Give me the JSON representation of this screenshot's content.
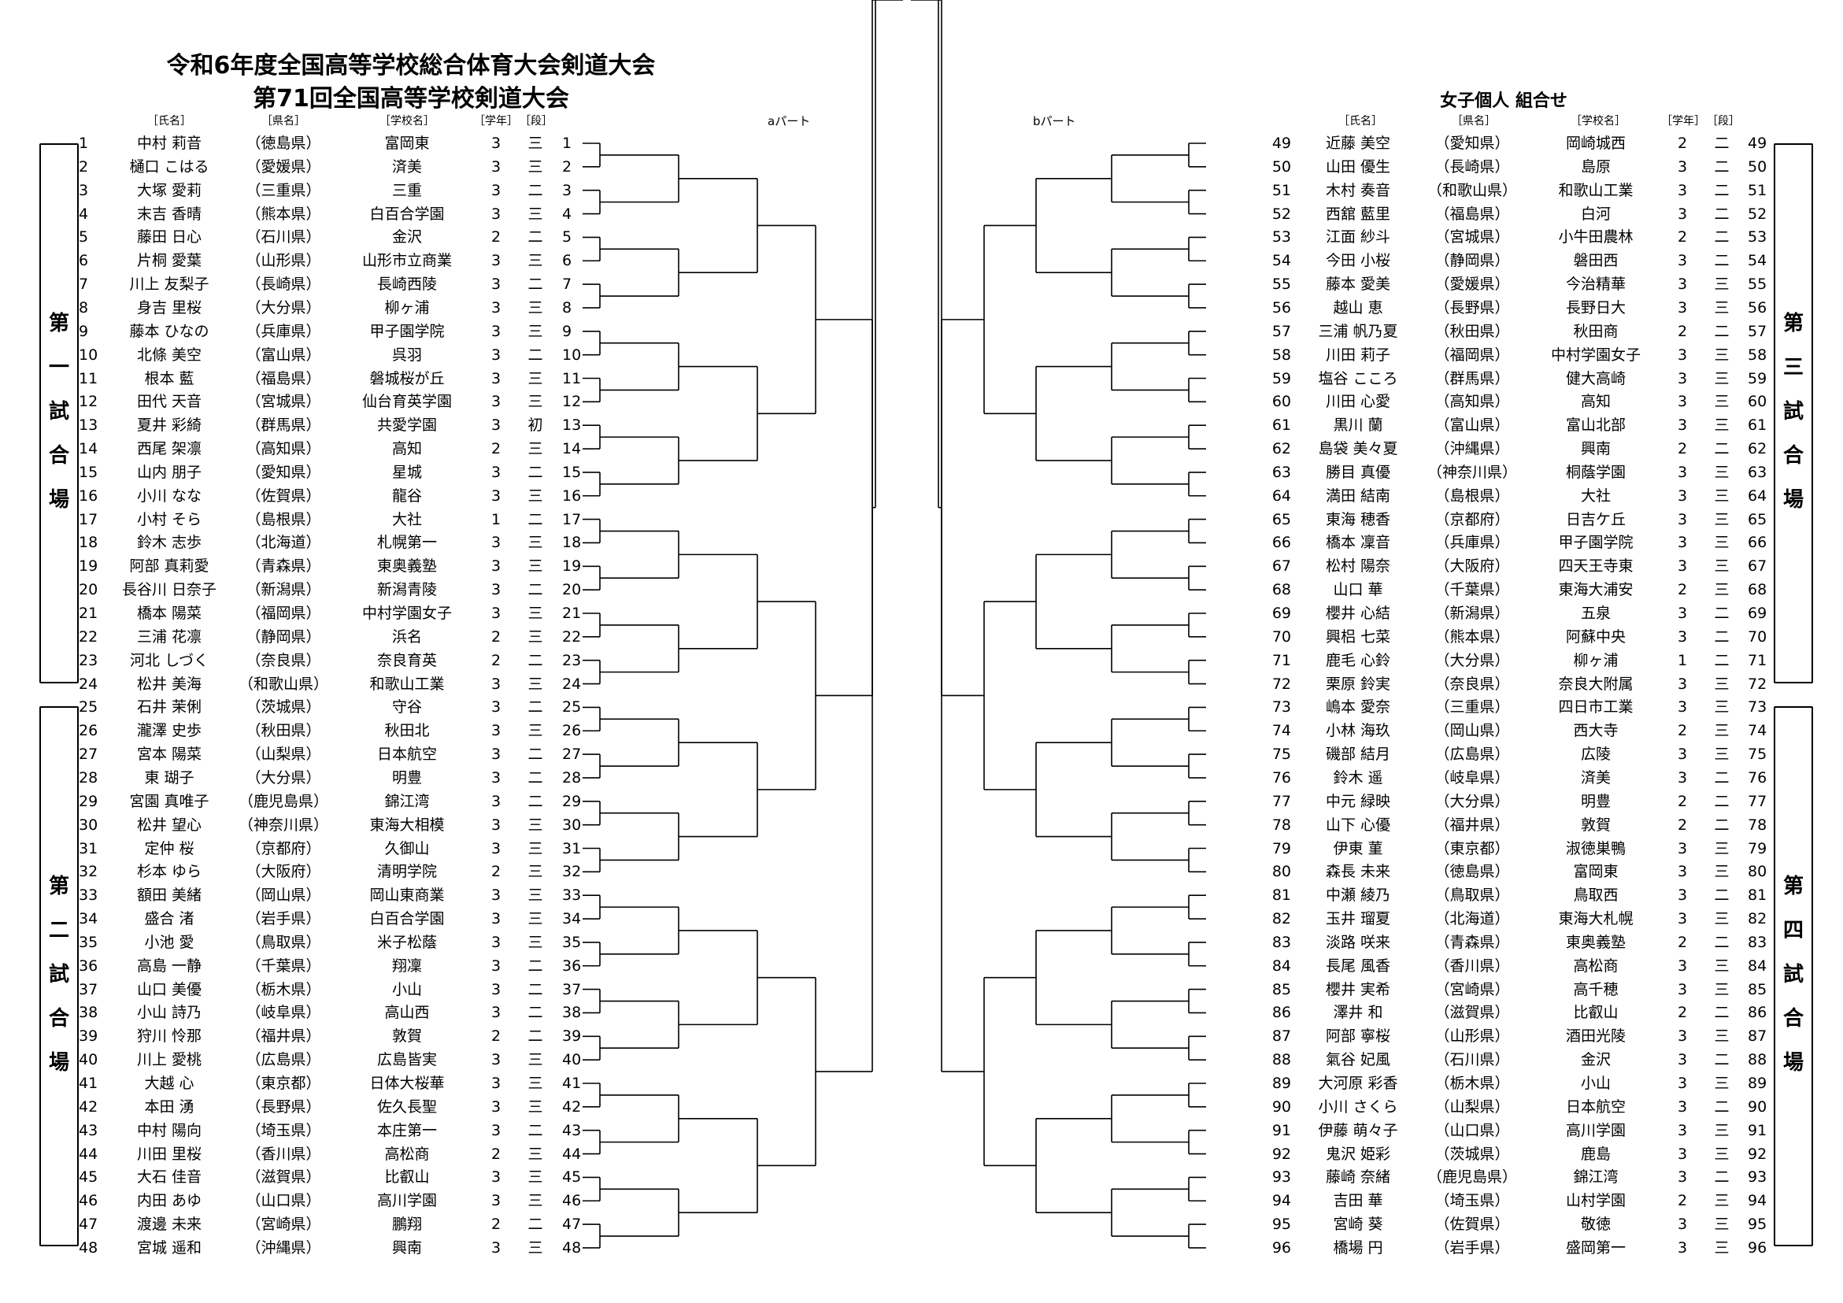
{
  "title_line1": "令和6年度全国高等学校総合体育大会剣道大会",
  "title_line2": "第71回全国高等学校剣道大会",
  "subtitle": "女子個人 組合せ",
  "headers": {
    "name": "［氏名］",
    "pref": "［県名］",
    "school": "［学校名］",
    "grade": "［学年］",
    "dan": "［段］"
  },
  "part_a": "aパート",
  "part_b": "bパート",
  "venues": [
    {
      "label": "第一試合場",
      "chars": [
        "第",
        "一",
        "試",
        "合",
        "場"
      ]
    },
    {
      "label": "第二試合場",
      "chars": [
        "第",
        "二",
        "試",
        "合",
        "場"
      ]
    },
    {
      "label": "第三試合場",
      "chars": [
        "第",
        "三",
        "試",
        "合",
        "場"
      ]
    },
    {
      "label": "第四試合場",
      "chars": [
        "第",
        "四",
        "試",
        "合",
        "場"
      ]
    }
  ],
  "players": [
    {
      "no": "1",
      "name": "中村 莉音",
      "pref": "（徳島県）",
      "school": "富岡東",
      "grade": "3",
      "dan": "三"
    },
    {
      "no": "2",
      "name": "樋口 こはる",
      "pref": "（愛媛県）",
      "school": "済美",
      "grade": "3",
      "dan": "三"
    },
    {
      "no": "3",
      "name": "大塚 愛莉",
      "pref": "（三重県）",
      "school": "三重",
      "grade": "3",
      "dan": "二"
    },
    {
      "no": "4",
      "name": "末吉 香晴",
      "pref": "（熊本県）",
      "school": "白百合学園",
      "grade": "3",
      "dan": "三"
    },
    {
      "no": "5",
      "name": "藤田 日心",
      "pref": "（石川県）",
      "school": "金沢",
      "grade": "2",
      "dan": "二"
    },
    {
      "no": "6",
      "name": "片桐 愛葉",
      "pref": "（山形県）",
      "school": "山形市立商業",
      "grade": "3",
      "dan": "三"
    },
    {
      "no": "7",
      "name": "川上 友梨子",
      "pref": "（長崎県）",
      "school": "長崎西陵",
      "grade": "3",
      "dan": "二"
    },
    {
      "no": "8",
      "name": "身吉 里桜",
      "pref": "（大分県）",
      "school": "柳ヶ浦",
      "grade": "3",
      "dan": "三"
    },
    {
      "no": "9",
      "name": "藤本 ひなの",
      "pref": "（兵庫県）",
      "school": "甲子園学院",
      "grade": "3",
      "dan": "三"
    },
    {
      "no": "10",
      "name": "北條 美空",
      "pref": "（富山県）",
      "school": "呉羽",
      "grade": "3",
      "dan": "二"
    },
    {
      "no": "11",
      "name": "根本 藍",
      "pref": "（福島県）",
      "school": "磐城桜が丘",
      "grade": "3",
      "dan": "三"
    },
    {
      "no": "12",
      "name": "田代 天音",
      "pref": "（宮城県）",
      "school": "仙台育英学園",
      "grade": "3",
      "dan": "三"
    },
    {
      "no": "13",
      "name": "夏井 彩綺",
      "pref": "（群馬県）",
      "school": "共愛学園",
      "grade": "3",
      "dan": "初"
    },
    {
      "no": "14",
      "name": "西尾 架凛",
      "pref": "（高知県）",
      "school": "高知",
      "grade": "2",
      "dan": "三"
    },
    {
      "no": "15",
      "name": "山内 朋子",
      "pref": "（愛知県）",
      "school": "星城",
      "grade": "3",
      "dan": "二"
    },
    {
      "no": "16",
      "name": "小川 なな",
      "pref": "（佐賀県）",
      "school": "龍谷",
      "grade": "3",
      "dan": "三"
    },
    {
      "no": "17",
      "name": "小村 そら",
      "pref": "（島根県）",
      "school": "大社",
      "grade": "1",
      "dan": "二"
    },
    {
      "no": "18",
      "name": "鈴木 志歩",
      "pref": "（北海道）",
      "school": "札幌第一",
      "grade": "3",
      "dan": "三"
    },
    {
      "no": "19",
      "name": "阿部 真莉愛",
      "pref": "（青森県）",
      "school": "東奥義塾",
      "grade": "3",
      "dan": "三"
    },
    {
      "no": "20",
      "name": "長谷川 日奈子",
      "pref": "（新潟県）",
      "school": "新潟青陵",
      "grade": "3",
      "dan": "二"
    },
    {
      "no": "21",
      "name": "橋本 陽菜",
      "pref": "（福岡県）",
      "school": "中村学園女子",
      "grade": "3",
      "dan": "三"
    },
    {
      "no": "22",
      "name": "三浦 花凛",
      "pref": "（静岡県）",
      "school": "浜名",
      "grade": "2",
      "dan": "三"
    },
    {
      "no": "23",
      "name": "河北 しづく",
      "pref": "（奈良県）",
      "school": "奈良育英",
      "grade": "2",
      "dan": "二"
    },
    {
      "no": "24",
      "name": "松井 美海",
      "pref": "（和歌山県）",
      "school": "和歌山工業",
      "grade": "3",
      "dan": "三"
    },
    {
      "no": "25",
      "name": "石井 茉俐",
      "pref": "（茨城県）",
      "school": "守谷",
      "grade": "3",
      "dan": "二"
    },
    {
      "no": "26",
      "name": "瀧澤 史歩",
      "pref": "（秋田県）",
      "school": "秋田北",
      "grade": "3",
      "dan": "三"
    },
    {
      "no": "27",
      "name": "宮本 陽菜",
      "pref": "（山梨県）",
      "school": "日本航空",
      "grade": "3",
      "dan": "二"
    },
    {
      "no": "28",
      "name": "東 瑚子",
      "pref": "（大分県）",
      "school": "明豊",
      "grade": "3",
      "dan": "二"
    },
    {
      "no": "29",
      "name": "宮園 真唯子",
      "pref": "（鹿児島県）",
      "school": "錦江湾",
      "grade": "3",
      "dan": "二"
    },
    {
      "no": "30",
      "name": "松井 望心",
      "pref": "（神奈川県）",
      "school": "東海大相模",
      "grade": "3",
      "dan": "三"
    },
    {
      "no": "31",
      "name": "定仲 桜",
      "pref": "（京都府）",
      "school": "久御山",
      "grade": "3",
      "dan": "三"
    },
    {
      "no": "32",
      "name": "杉本 ゆら",
      "pref": "（大阪府）",
      "school": "清明学院",
      "grade": "2",
      "dan": "三"
    },
    {
      "no": "33",
      "name": "額田 美緒",
      "pref": "（岡山県）",
      "school": "岡山東商業",
      "grade": "3",
      "dan": "三"
    },
    {
      "no": "34",
      "name": "盛合 渚",
      "pref": "（岩手県）",
      "school": "白百合学園",
      "grade": "3",
      "dan": "三"
    },
    {
      "no": "35",
      "name": "小池 愛",
      "pref": "（鳥取県）",
      "school": "米子松蔭",
      "grade": "3",
      "dan": "三"
    },
    {
      "no": "36",
      "name": "高島 一静",
      "pref": "（千葉県）",
      "school": "翔凜",
      "grade": "3",
      "dan": "二"
    },
    {
      "no": "37",
      "name": "山口 美優",
      "pref": "（栃木県）",
      "school": "小山",
      "grade": "3",
      "dan": "二"
    },
    {
      "no": "38",
      "name": "小山 詩乃",
      "pref": "（岐阜県）",
      "school": "高山西",
      "grade": "3",
      "dan": "二"
    },
    {
      "no": "39",
      "name": "狩川 怜那",
      "pref": "（福井県）",
      "school": "敦賀",
      "grade": "2",
      "dan": "二"
    },
    {
      "no": "40",
      "name": "川上 愛桃",
      "pref": "（広島県）",
      "school": "広島皆実",
      "grade": "3",
      "dan": "三"
    },
    {
      "no": "41",
      "name": "大越 心",
      "pref": "（東京都）",
      "school": "日体大桜華",
      "grade": "3",
      "dan": "三"
    },
    {
      "no": "42",
      "name": "本田 湧",
      "pref": "（長野県）",
      "school": "佐久長聖",
      "grade": "3",
      "dan": "三"
    },
    {
      "no": "43",
      "name": "中村 陽向",
      "pref": "（埼玉県）",
      "school": "本庄第一",
      "grade": "3",
      "dan": "二"
    },
    {
      "no": "44",
      "name": "川田 里桜",
      "pref": "（香川県）",
      "school": "高松商",
      "grade": "2",
      "dan": "三"
    },
    {
      "no": "45",
      "name": "大石 佳音",
      "pref": "（滋賀県）",
      "school": "比叡山",
      "grade": "3",
      "dan": "三"
    },
    {
      "no": "46",
      "name": "内田 あゆ",
      "pref": "（山口県）",
      "school": "高川学園",
      "grade": "3",
      "dan": "三"
    },
    {
      "no": "47",
      "name": "渡邊 未来",
      "pref": "（宮崎県）",
      "school": "鵬翔",
      "grade": "2",
      "dan": "二"
    },
    {
      "no": "48",
      "name": "宮城 遥和",
      "pref": "（沖縄県）",
      "school": "興南",
      "grade": "3",
      "dan": "三"
    },
    {
      "no": "49",
      "name": "近藤 美空",
      "pref": "（愛知県）",
      "school": "岡崎城西",
      "grade": "2",
      "dan": "二"
    },
    {
      "no": "50",
      "name": "山田 優生",
      "pref": "（長崎県）",
      "school": "島原",
      "grade": "3",
      "dan": "二"
    },
    {
      "no": "51",
      "name": "木村 奏音",
      "pref": "（和歌山県）",
      "school": "和歌山工業",
      "grade": "3",
      "dan": "二"
    },
    {
      "no": "52",
      "name": "西舘 藍里",
      "pref": "（福島県）",
      "school": "白河",
      "grade": "3",
      "dan": "二"
    },
    {
      "no": "53",
      "name": "江面 紗斗",
      "pref": "（宮城県）",
      "school": "小牛田農林",
      "grade": "2",
      "dan": "二"
    },
    {
      "no": "54",
      "name": "今田 小桜",
      "pref": "（静岡県）",
      "school": "磐田西",
      "grade": "3",
      "dan": "二"
    },
    {
      "no": "55",
      "name": "藤本 愛美",
      "pref": "（愛媛県）",
      "school": "今治精華",
      "grade": "3",
      "dan": "三"
    },
    {
      "no": "56",
      "name": "越山 恵",
      "pref": "（長野県）",
      "school": "長野日大",
      "grade": "3",
      "dan": "三"
    },
    {
      "no": "57",
      "name": "三浦 帆乃夏",
      "pref": "（秋田県）",
      "school": "秋田商",
      "grade": "2",
      "dan": "二"
    },
    {
      "no": "58",
      "name": "川田 莉子",
      "pref": "（福岡県）",
      "school": "中村学園女子",
      "grade": "3",
      "dan": "三"
    },
    {
      "no": "59",
      "name": "塩谷 こころ",
      "pref": "（群馬県）",
      "school": "健大高崎",
      "grade": "3",
      "dan": "三"
    },
    {
      "no": "60",
      "name": "川田 心愛",
      "pref": "（高知県）",
      "school": "高知",
      "grade": "3",
      "dan": "三"
    },
    {
      "no": "61",
      "name": "黒川 蘭",
      "pref": "（富山県）",
      "school": "富山北部",
      "grade": "3",
      "dan": "三"
    },
    {
      "no": "62",
      "name": "島袋 美々夏",
      "pref": "（沖縄県）",
      "school": "興南",
      "grade": "2",
      "dan": "二"
    },
    {
      "no": "63",
      "name": "勝目 真優",
      "pref": "（神奈川県）",
      "school": "桐蔭学園",
      "grade": "3",
      "dan": "三"
    },
    {
      "no": "64",
      "name": "満田 結南",
      "pref": "（島根県）",
      "school": "大社",
      "grade": "3",
      "dan": "三"
    },
    {
      "no": "65",
      "name": "東海 穂香",
      "pref": "（京都府）",
      "school": "日吉ケ丘",
      "grade": "3",
      "dan": "三"
    },
    {
      "no": "66",
      "name": "橋本 凜音",
      "pref": "（兵庫県）",
      "school": "甲子園学院",
      "grade": "3",
      "dan": "三"
    },
    {
      "no": "67",
      "name": "松村 陽奈",
      "pref": "（大阪府）",
      "school": "四天王寺東",
      "grade": "3",
      "dan": "三"
    },
    {
      "no": "68",
      "name": "山口 華",
      "pref": "（千葉県）",
      "school": "東海大浦安",
      "grade": "2",
      "dan": "三"
    },
    {
      "no": "69",
      "name": "櫻井 心結",
      "pref": "（新潟県）",
      "school": "五泉",
      "grade": "3",
      "dan": "二"
    },
    {
      "no": "70",
      "name": "興梠 七菜",
      "pref": "（熊本県）",
      "school": "阿蘇中央",
      "grade": "3",
      "dan": "二"
    },
    {
      "no": "71",
      "name": "鹿毛 心鈴",
      "pref": "（大分県）",
      "school": "柳ヶ浦",
      "grade": "1",
      "dan": "二"
    },
    {
      "no": "72",
      "name": "栗原 鈴実",
      "pref": "（奈良県）",
      "school": "奈良大附属",
      "grade": "3",
      "dan": "三"
    },
    {
      "no": "73",
      "name": "嶋本 愛奈",
      "pref": "（三重県）",
      "school": "四日市工業",
      "grade": "3",
      "dan": "三"
    },
    {
      "no": "74",
      "name": "小林 海玖",
      "pref": "（岡山県）",
      "school": "西大寺",
      "grade": "2",
      "dan": "三"
    },
    {
      "no": "75",
      "name": "磯部 結月",
      "pref": "（広島県）",
      "school": "広陵",
      "grade": "3",
      "dan": "三"
    },
    {
      "no": "76",
      "name": "鈴木 遥",
      "pref": "（岐阜県）",
      "school": "済美",
      "grade": "3",
      "dan": "二"
    },
    {
      "no": "77",
      "name": "中元 緑映",
      "pref": "（大分県）",
      "school": "明豊",
      "grade": "2",
      "dan": "二"
    },
    {
      "no": "78",
      "name": "山下 心優",
      "pref": "（福井県）",
      "school": "敦賀",
      "grade": "2",
      "dan": "二"
    },
    {
      "no": "79",
      "name": "伊東 菫",
      "pref": "（東京都）",
      "school": "淑徳巣鴨",
      "grade": "3",
      "dan": "三"
    },
    {
      "no": "80",
      "name": "森長 未来",
      "pref": "（徳島県）",
      "school": "富岡東",
      "grade": "3",
      "dan": "三"
    },
    {
      "no": "81",
      "name": "中瀬 綾乃",
      "pref": "（鳥取県）",
      "school": "鳥取西",
      "grade": "3",
      "dan": "二"
    },
    {
      "no": "82",
      "name": "玉井 瑠夏",
      "pref": "（北海道）",
      "school": "東海大札幌",
      "grade": "3",
      "dan": "三"
    },
    {
      "no": "83",
      "name": "淡路 咲来",
      "pref": "（青森県）",
      "school": "東奥義塾",
      "grade": "2",
      "dan": "二"
    },
    {
      "no": "84",
      "name": "長尾 風香",
      "pref": "（香川県）",
      "school": "高松商",
      "grade": "3",
      "dan": "三"
    },
    {
      "no": "85",
      "name": "櫻井 実希",
      "pref": "（宮崎県）",
      "school": "高千穂",
      "grade": "3",
      "dan": "三"
    },
    {
      "no": "86",
      "name": "澤井 和",
      "pref": "（滋賀県）",
      "school": "比叡山",
      "grade": "2",
      "dan": "二"
    },
    {
      "no": "87",
      "name": "阿部 寧桜",
      "pref": "（山形県）",
      "school": "酒田光陵",
      "grade": "3",
      "dan": "三"
    },
    {
      "no": "88",
      "name": "氣谷 妃風",
      "pref": "（石川県）",
      "school": "金沢",
      "grade": "3",
      "dan": "二"
    },
    {
      "no": "89",
      "name": "大河原 彩香",
      "pref": "（栃木県）",
      "school": "小山",
      "grade": "3",
      "dan": "三"
    },
    {
      "no": "90",
      "name": "小川 さくら",
      "pref": "（山梨県）",
      "school": "日本航空",
      "grade": "3",
      "dan": "二"
    },
    {
      "no": "91",
      "name": "伊藤 萌々子",
      "pref": "（山口県）",
      "school": "高川学園",
      "grade": "3",
      "dan": "三"
    },
    {
      "no": "92",
      "name": "鬼沢 姫彩",
      "pref": "（茨城県）",
      "school": "鹿島",
      "grade": "3",
      "dan": "三"
    },
    {
      "no": "93",
      "name": "藤崎 奈緒",
      "pref": "（鹿児島県）",
      "school": "錦江湾",
      "grade": "3",
      "dan": "二"
    },
    {
      "no": "94",
      "name": "吉田 華",
      "pref": "（埼玉県）",
      "school": "山村学園",
      "grade": "2",
      "dan": "三"
    },
    {
      "no": "95",
      "name": "宮崎 葵",
      "pref": "（佐賀県）",
      "school": "敬徳",
      "grade": "3",
      "dan": "三"
    },
    {
      "no": "96",
      "name": "橋場 円",
      "pref": "（岩手県）",
      "school": "盛岡第一",
      "grade": "3",
      "dan": "三"
    }
  ]
}
